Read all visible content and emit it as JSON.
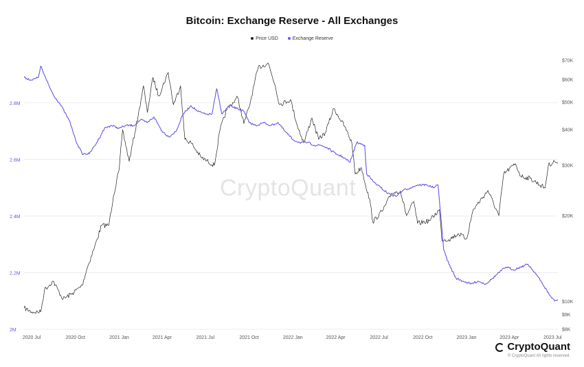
{
  "title": "Bitcoin: Exchange Reserve - All Exchanges",
  "legend": [
    {
      "label": "Price USD",
      "color": "#222222"
    },
    {
      "label": "Exchange Reserve",
      "color": "#6457e6"
    }
  ],
  "watermark": "CryptoQuant",
  "brand": "CryptoQuant",
  "copyright": "© CryptoQuant All rights reserved.",
  "chart_data": {
    "type": "line",
    "title": "Bitcoin: Exchange Reserve - All Exchanges",
    "x_axis": {
      "type": "date",
      "range": [
        "2020-06-15",
        "2023-07-12"
      ],
      "ticks": [
        {
          "date": "2020-07-01",
          "label": "2020 Jul"
        },
        {
          "date": "2020-10-01",
          "label": "2020 Oct"
        },
        {
          "date": "2021-01-01",
          "label": "2021 Jan"
        },
        {
          "date": "2021-04-01",
          "label": "2021 Apr"
        },
        {
          "date": "2021-07-01",
          "label": "2021 Jul"
        },
        {
          "date": "2021-10-01",
          "label": "2021 Oct"
        },
        {
          "date": "2022-01-01",
          "label": "2022 Jan"
        },
        {
          "date": "2022-04-01",
          "label": "2022 Apr"
        },
        {
          "date": "2022-07-01",
          "label": "2022 Jul"
        },
        {
          "date": "2022-10-01",
          "label": "2022 Oct"
        },
        {
          "date": "2023-01-01",
          "label": "2023 Jan"
        },
        {
          "date": "2023-04-01",
          "label": "2023 Apr"
        },
        {
          "date": "2023-07-01",
          "label": "2023 Jul"
        }
      ]
    },
    "y_left": {
      "range": [
        2000000,
        2950000
      ],
      "ticks": [
        {
          "value": 2000000,
          "label": "2M"
        },
        {
          "value": 2200000,
          "label": "2.2M"
        },
        {
          "value": 2400000,
          "label": "2.4M"
        },
        {
          "value": 2600000,
          "label": "2.6M"
        },
        {
          "value": 2800000,
          "label": "2.8M"
        }
      ],
      "color": "#6457e6"
    },
    "y_right": {
      "scale": "log",
      "range": [
        8000,
        70000
      ],
      "ticks": [
        {
          "value": 8000,
          "label": "$8K"
        },
        {
          "value": 9000,
          "label": "$9K"
        },
        {
          "value": 10000,
          "label": "$10K"
        },
        {
          "value": 20000,
          "label": "$20K"
        },
        {
          "value": 30000,
          "label": "$30K"
        },
        {
          "value": 40000,
          "label": "$40K"
        },
        {
          "value": 50000,
          "label": "$50K"
        },
        {
          "value": 60000,
          "label": "$60K"
        },
        {
          "value": 70000,
          "label": "$70K"
        }
      ]
    },
    "grid": true,
    "legend_position": "top-center",
    "series": [
      {
        "name": "Price USD",
        "axis": "right",
        "color": "#222222",
        "points": [
          [
            "2020-06-15",
            9500
          ],
          [
            "2020-07-01",
            9200
          ],
          [
            "2020-07-20",
            9200
          ],
          [
            "2020-07-28",
            11000
          ],
          [
            "2020-08-15",
            11800
          ],
          [
            "2020-09-05",
            10200
          ],
          [
            "2020-09-25",
            10700
          ],
          [
            "2020-10-15",
            11400
          ],
          [
            "2020-10-25",
            13000
          ],
          [
            "2020-11-10",
            15500
          ],
          [
            "2020-11-25",
            18500
          ],
          [
            "2020-12-10",
            18500
          ],
          [
            "2020-12-20",
            23500
          ],
          [
            "2021-01-01",
            29000
          ],
          [
            "2021-01-08",
            40000
          ],
          [
            "2021-01-22",
            31000
          ],
          [
            "2021-02-10",
            45000
          ],
          [
            "2021-02-21",
            57000
          ],
          [
            "2021-03-01",
            46000
          ],
          [
            "2021-03-13",
            61000
          ],
          [
            "2021-03-25",
            52500
          ],
          [
            "2021-04-14",
            63500
          ],
          [
            "2021-04-25",
            49000
          ],
          [
            "2021-05-10",
            57000
          ],
          [
            "2021-05-19",
            37000
          ],
          [
            "2021-06-01",
            36000
          ],
          [
            "2021-06-22",
            32000
          ],
          [
            "2021-07-20",
            30000
          ],
          [
            "2021-08-01",
            40000
          ],
          [
            "2021-08-15",
            47000
          ],
          [
            "2021-09-07",
            52000
          ],
          [
            "2021-09-20",
            42000
          ],
          [
            "2021-10-01",
            48000
          ],
          [
            "2021-10-20",
            66000
          ],
          [
            "2021-11-10",
            68500
          ],
          [
            "2021-11-25",
            57000
          ],
          [
            "2021-12-04",
            49000
          ],
          [
            "2021-12-27",
            51000
          ],
          [
            "2022-01-10",
            41500
          ],
          [
            "2022-01-24",
            36000
          ],
          [
            "2022-02-10",
            44000
          ],
          [
            "2022-02-24",
            37000
          ],
          [
            "2022-03-10",
            39000
          ],
          [
            "2022-03-28",
            47500
          ],
          [
            "2022-04-20",
            41000
          ],
          [
            "2022-05-05",
            36000
          ],
          [
            "2022-05-12",
            28000
          ],
          [
            "2022-05-25",
            29500
          ],
          [
            "2022-06-13",
            22000
          ],
          [
            "2022-06-18",
            19000
          ],
          [
            "2022-07-10",
            21000
          ],
          [
            "2022-07-28",
            24000
          ],
          [
            "2022-08-15",
            24400
          ],
          [
            "2022-08-28",
            20000
          ],
          [
            "2022-09-12",
            22400
          ],
          [
            "2022-09-20",
            18800
          ],
          [
            "2022-10-15",
            19200
          ],
          [
            "2022-11-05",
            21000
          ],
          [
            "2022-11-10",
            16500
          ],
          [
            "2022-11-25",
            16500
          ],
          [
            "2022-12-15",
            17300
          ],
          [
            "2023-01-01",
            16600
          ],
          [
            "2023-01-15",
            21000
          ],
          [
            "2023-02-15",
            24500
          ],
          [
            "2023-03-10",
            20000
          ],
          [
            "2023-03-20",
            28000
          ],
          [
            "2023-04-14",
            30400
          ],
          [
            "2023-04-25",
            27500
          ],
          [
            "2023-05-15",
            27000
          ],
          [
            "2023-06-15",
            25000
          ],
          [
            "2023-06-22",
            30000
          ],
          [
            "2023-07-05",
            31000
          ],
          [
            "2023-07-12",
            30500
          ]
        ]
      },
      {
        "name": "Exchange Reserve",
        "axis": "left",
        "color": "#6457e6",
        "points": [
          [
            "2020-06-15",
            2890000
          ],
          [
            "2020-07-01",
            2880000
          ],
          [
            "2020-07-15",
            2890000
          ],
          [
            "2020-07-20",
            2930000
          ],
          [
            "2020-08-01",
            2880000
          ],
          [
            "2020-08-15",
            2830000
          ],
          [
            "2020-09-01",
            2790000
          ],
          [
            "2020-09-20",
            2730000
          ],
          [
            "2020-10-01",
            2670000
          ],
          [
            "2020-10-15",
            2620000
          ],
          [
            "2020-10-30",
            2620000
          ],
          [
            "2020-11-15",
            2660000
          ],
          [
            "2020-12-01",
            2710000
          ],
          [
            "2020-12-15",
            2720000
          ],
          [
            "2021-01-01",
            2710000
          ],
          [
            "2021-01-15",
            2720000
          ],
          [
            "2021-02-01",
            2720000
          ],
          [
            "2021-02-15",
            2740000
          ],
          [
            "2021-03-01",
            2730000
          ],
          [
            "2021-03-15",
            2750000
          ],
          [
            "2021-04-01",
            2700000
          ],
          [
            "2021-04-15",
            2680000
          ],
          [
            "2021-05-01",
            2700000
          ],
          [
            "2021-05-15",
            2760000
          ],
          [
            "2021-06-01",
            2790000
          ],
          [
            "2021-06-15",
            2770000
          ],
          [
            "2021-07-01",
            2760000
          ],
          [
            "2021-07-15",
            2760000
          ],
          [
            "2021-07-25",
            2850000
          ],
          [
            "2021-08-05",
            2760000
          ],
          [
            "2021-08-20",
            2790000
          ],
          [
            "2021-09-05",
            2780000
          ],
          [
            "2021-09-20",
            2770000
          ],
          [
            "2021-10-01",
            2730000
          ],
          [
            "2021-10-15",
            2720000
          ],
          [
            "2021-11-01",
            2730000
          ],
          [
            "2021-11-15",
            2720000
          ],
          [
            "2021-12-01",
            2730000
          ],
          [
            "2021-12-15",
            2700000
          ],
          [
            "2022-01-01",
            2670000
          ],
          [
            "2022-01-15",
            2660000
          ],
          [
            "2022-02-01",
            2660000
          ],
          [
            "2022-02-15",
            2650000
          ],
          [
            "2022-03-01",
            2650000
          ],
          [
            "2022-03-15",
            2640000
          ],
          [
            "2022-04-01",
            2620000
          ],
          [
            "2022-04-15",
            2610000
          ],
          [
            "2022-05-01",
            2590000
          ],
          [
            "2022-05-15",
            2660000
          ],
          [
            "2022-06-01",
            2650000
          ],
          [
            "2022-06-05",
            2550000
          ],
          [
            "2022-06-20",
            2520000
          ],
          [
            "2022-07-05",
            2500000
          ],
          [
            "2022-07-20",
            2480000
          ],
          [
            "2022-08-05",
            2470000
          ],
          [
            "2022-08-20",
            2490000
          ],
          [
            "2022-09-05",
            2500000
          ],
          [
            "2022-09-20",
            2510000
          ],
          [
            "2022-10-10",
            2510000
          ],
          [
            "2022-10-25",
            2500000
          ],
          [
            "2022-11-02",
            2510000
          ],
          [
            "2022-11-08",
            2400000
          ],
          [
            "2022-11-14",
            2280000
          ],
          [
            "2022-11-25",
            2230000
          ],
          [
            "2022-12-10",
            2180000
          ],
          [
            "2022-12-25",
            2170000
          ],
          [
            "2023-01-10",
            2160000
          ],
          [
            "2023-01-25",
            2170000
          ],
          [
            "2023-02-10",
            2160000
          ],
          [
            "2023-02-25",
            2180000
          ],
          [
            "2023-03-10",
            2200000
          ],
          [
            "2023-03-25",
            2220000
          ],
          [
            "2023-04-10",
            2210000
          ],
          [
            "2023-04-25",
            2220000
          ],
          [
            "2023-05-10",
            2230000
          ],
          [
            "2023-05-25",
            2200000
          ],
          [
            "2023-06-10",
            2160000
          ],
          [
            "2023-06-25",
            2120000
          ],
          [
            "2023-07-05",
            2100000
          ],
          [
            "2023-07-12",
            2105000
          ]
        ]
      }
    ]
  }
}
